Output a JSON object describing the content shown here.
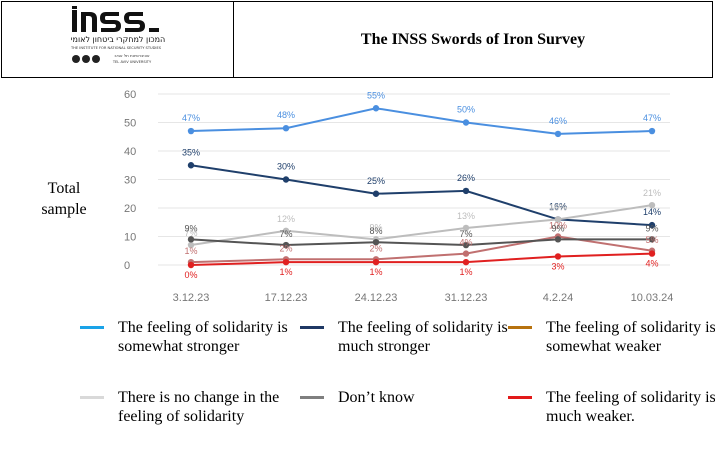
{
  "header": {
    "title": "The INSS Swords of Iron Survey",
    "logo": {
      "wordmark": "INSS",
      "hebrew_line": "המכון למחקרי ביטחון לאומי",
      "english_line": "THE INSTITUTE FOR NATIONAL SECURITY STUDIES",
      "small_hebrew": "אוניברסיטת תל אביב",
      "small_english": "TEL AVIV UNIVERSITY"
    }
  },
  "side_label": "Total sample",
  "chart_data": {
    "type": "line",
    "categories": [
      "3.12.23",
      "17.12.23",
      "24.12.23",
      "31.12.23",
      "4.2.24",
      "10.03.24"
    ],
    "ylim": [
      0,
      60
    ],
    "yticks": [
      "0",
      "10",
      "20",
      "30",
      "40",
      "50",
      "60"
    ],
    "grid": true,
    "legend_placement": "bottom",
    "series": [
      {
        "name": "The feeling of solidarity is somewhat stronger",
        "color": "#4a8fe0",
        "values": [
          47,
          48,
          55,
          50,
          46,
          47
        ],
        "labels": [
          "47%",
          "48%",
          "55%",
          "50%",
          "46%",
          "47%"
        ]
      },
      {
        "name": "The feeling of solidarity is much stronger",
        "color": "#1f3f6b",
        "values": [
          35,
          30,
          25,
          26,
          16,
          14
        ],
        "labels": [
          "35%",
          "30%",
          "25%",
          "26%",
          "16%",
          "14%"
        ]
      },
      {
        "name": "The feeling of solidarity is somewhat weaker",
        "color": "#c07070",
        "values": [
          1,
          2,
          2,
          4,
          10,
          5
        ],
        "labels": [
          "1%",
          "2%",
          "2%",
          "4%",
          "10%",
          "5%"
        ]
      },
      {
        "name": "There is no change in the feeling of solidarity",
        "color": "#bdbdbd",
        "values": [
          7,
          12,
          9,
          13,
          16,
          21
        ],
        "labels": [
          "7%",
          "12%",
          "9%",
          "13%",
          "16%",
          "21%"
        ]
      },
      {
        "name": "Don’t know",
        "color": "#555555",
        "values": [
          9,
          7,
          8,
          7,
          9,
          9
        ],
        "labels": [
          "9%",
          "7%",
          "8%",
          "7%",
          "9%",
          "9%"
        ]
      },
      {
        "name": "The feeling of solidarity is much weaker.",
        "color": "#e02020",
        "values": [
          0,
          1,
          1,
          1,
          3,
          4
        ],
        "labels": [
          "0%",
          "1%",
          "1%",
          "1%",
          "3%",
          "4%"
        ]
      }
    ]
  },
  "legend": {
    "items": [
      {
        "label": "The feeling of solidarity is somewhat stronger",
        "color": "#1aa3e8"
      },
      {
        "label": "The feeling of solidarity is much stronger",
        "color": "#1f3864"
      },
      {
        "label": "The feeling of solidarity is somewhat weaker",
        "color": "#b7720e"
      },
      {
        "label": "There is no change in the feeling of solidarity",
        "color": "#d9d9d9"
      },
      {
        "label": "Don’t know",
        "color": "#7f7f7f"
      },
      {
        "label": "The feeling of solidarity is much weaker.",
        "color": "#e21a1a"
      }
    ]
  }
}
